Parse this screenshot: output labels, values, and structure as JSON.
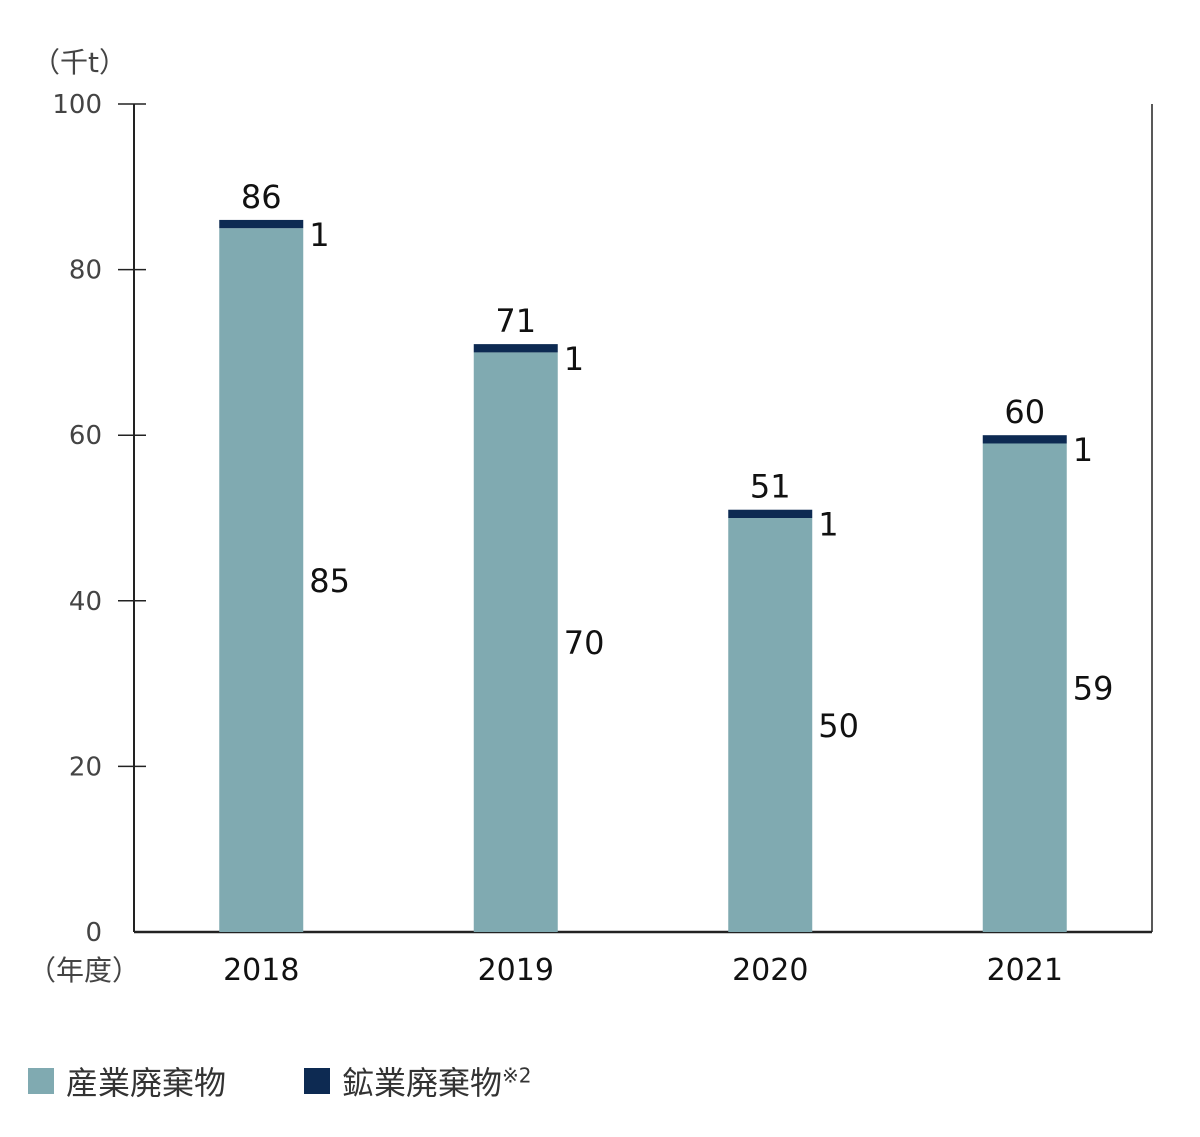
{
  "chart_data": {
    "type": "bar",
    "stacked": true,
    "y_unit_label": "（千t）",
    "x_unit_label": "（年度）",
    "categories": [
      "2018",
      "2019",
      "2020",
      "2021"
    ],
    "totals": [
      "86",
      "71",
      "51",
      "60"
    ],
    "series": [
      {
        "name": "産業廃棄物",
        "values": [
          85,
          70,
          50,
          59
        ],
        "color": "#80aab1",
        "labels": [
          "85",
          "70",
          "50",
          "59"
        ]
      },
      {
        "name": "鉱業廃棄物",
        "note": "※2",
        "values": [
          1,
          1,
          1,
          1
        ],
        "color": "#0d2a52",
        "labels": [
          "1",
          "1",
          "1",
          "1"
        ]
      }
    ],
    "ylim": [
      0,
      100
    ],
    "yticks": [
      "0",
      "20",
      "40",
      "60",
      "80",
      "100"
    ],
    "grid": false,
    "legend_position": "bottom-left"
  }
}
